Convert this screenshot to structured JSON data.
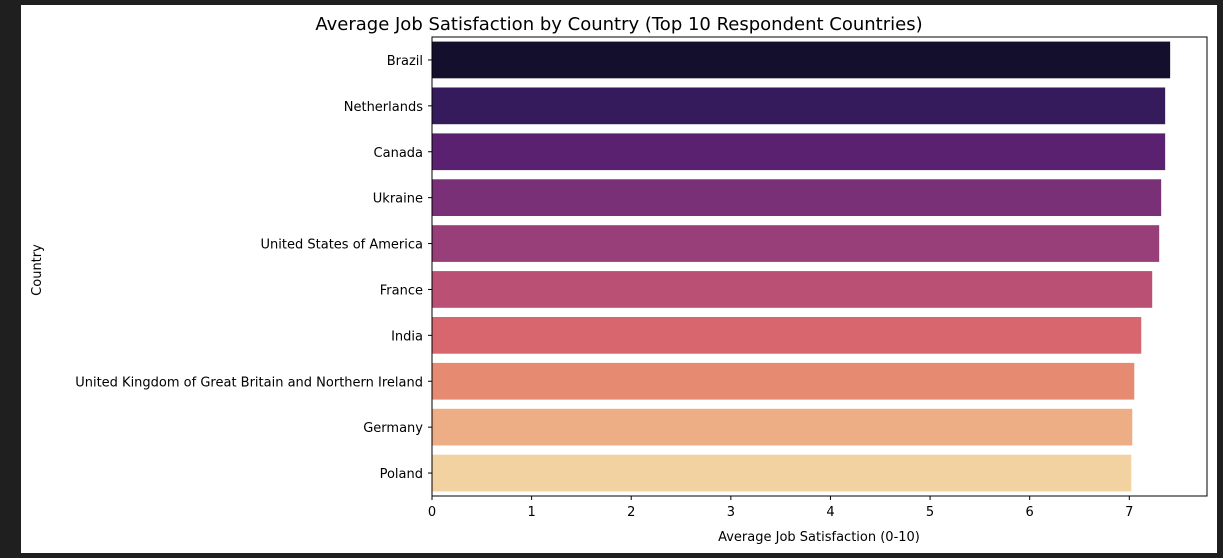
{
  "chart_data": {
    "type": "bar",
    "orientation": "horizontal",
    "title": "Average Job Satisfaction by Country (Top 10 Respondent Countries)",
    "xlabel": "Average Job Satisfaction (0-10)",
    "ylabel": "Country",
    "xlim": [
      0,
      7.78
    ],
    "xticks": [
      0,
      1,
      2,
      3,
      4,
      5,
      6,
      7
    ],
    "categories": [
      "Brazil",
      "Netherlands",
      "Canada",
      "Ukraine",
      "United States of America",
      "France",
      "India",
      "United Kingdom of Great Britain and Northern Ireland",
      "Germany",
      "Poland"
    ],
    "values": [
      7.41,
      7.36,
      7.36,
      7.32,
      7.3,
      7.23,
      7.12,
      7.05,
      7.03,
      7.02
    ],
    "colors": [
      "#140f2d",
      "#351a5c",
      "#5a2170",
      "#7a3076",
      "#983f7a",
      "#ba5073",
      "#d7666f",
      "#e78a72",
      "#eeae85",
      "#f2d2a0"
    ],
    "grid": false,
    "legend": "none"
  }
}
